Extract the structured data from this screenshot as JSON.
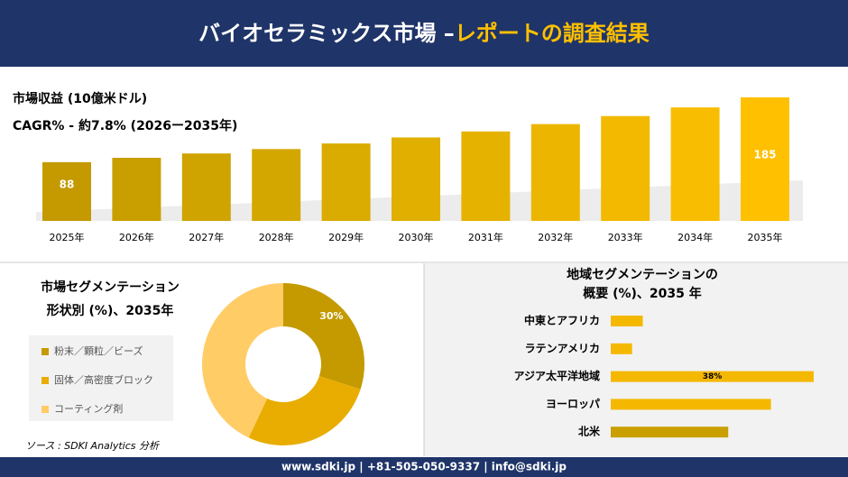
{
  "header": {
    "title_main": "バイオセラミックス市場 –",
    "title_highlight": "レポートの調査結果"
  },
  "chart_data": [
    {
      "type": "bar",
      "title": "市場収益 (10億米ドル)",
      "subtitle": "CAGR% - 約7.8% (2026ー2035年)",
      "categories": [
        "2025年",
        "2026年",
        "2027年",
        "2028年",
        "2029年",
        "2030年",
        "2031年",
        "2032年",
        "2033年",
        "2034年",
        "2035年"
      ],
      "values": [
        88,
        94.5,
        101,
        107.6,
        116,
        125,
        134,
        145,
        157,
        170,
        185
      ],
      "colors": [
        "#c49a00",
        "#c99f00",
        "#cfa300",
        "#d4a700",
        "#daab00",
        "#e0af00",
        "#e6b200",
        "#ecb600",
        "#f2b900",
        "#f8bd00",
        "#ffc000"
      ]
    },
    {
      "type": "donut",
      "title": "市場セグメンテーション",
      "subtitle": "形状別 (%)、2035年",
      "categories": [
        "粉末／顆粒／ビーズ",
        "固体／高密度ブロック",
        "コーティング剤"
      ],
      "values": [
        30,
        27,
        43
      ],
      "value_labels": [
        "30%",
        null,
        null
      ],
      "colors": [
        "#c49a00",
        "#e8ad00",
        "#ffcc66"
      ]
    },
    {
      "type": "barh",
      "title": "地域セグメンテーションの",
      "subtitle": "概要 (%)、2035 年",
      "categories": [
        "中東とアフリカ",
        "ラテンアメリカ",
        "アジア太平洋地域",
        "ヨーロッパ",
        "北米"
      ],
      "values": [
        6,
        4,
        38,
        30,
        22
      ],
      "value_labels": [
        null,
        null,
        "38%",
        null,
        null
      ],
      "colors": [
        "#f5b800",
        "#f5b800",
        "#f5b800",
        "#f5b800",
        "#c9a000"
      ]
    }
  ],
  "source": "ソース : SDKI Analytics 分析",
  "footer": "www.sdki.jp | +81-505-050-9337 | info@sdki.jp"
}
